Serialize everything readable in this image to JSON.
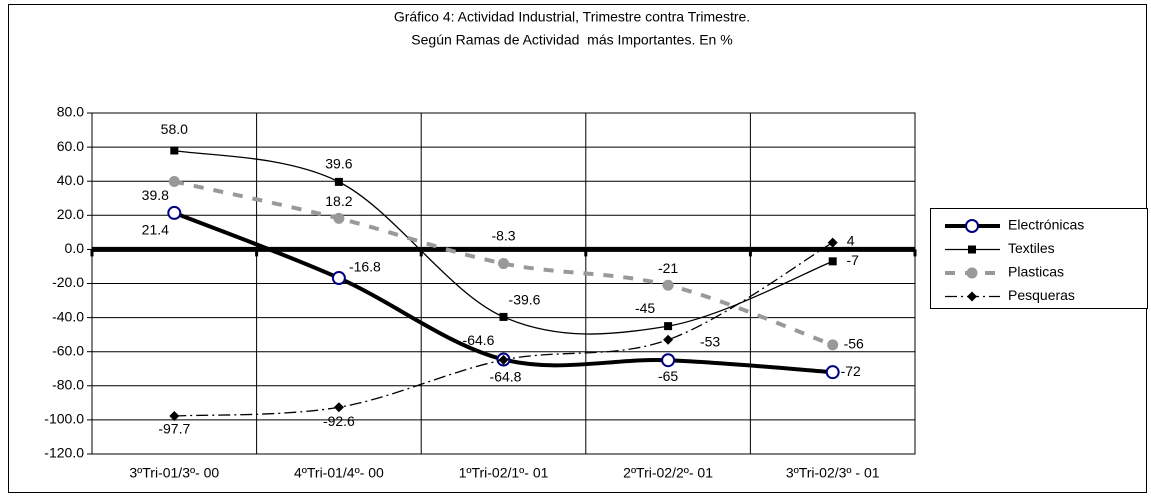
{
  "chart_data": {
    "type": "line",
    "title": [
      "Gráfico 4: Actividad Industrial, Trimestre contra Trimestre.",
      "Según Ramas de Actividad  más Importantes. En %"
    ],
    "categories": [
      "3ºTri-01/3º- 00",
      "4ºTri-01/4º- 00",
      "1ºTri-02/1º- 01",
      "2ºTri-02/2º- 01",
      "3ºTri-02/3º - 01"
    ],
    "series": [
      {
        "name": "Electrónicas",
        "color": "#000000",
        "marker_color": "#000080",
        "values": [
          21.4,
          -16.8,
          -64.6,
          -65,
          -72
        ]
      },
      {
        "name": "Textiles",
        "color": "#000000",
        "values": [
          58.0,
          39.6,
          -39.6,
          -45,
          -7
        ],
        "value_labels": [
          "58.0",
          "39.6",
          "-39.6",
          "-45",
          "-7"
        ]
      },
      {
        "name": "Plasticas",
        "color": "#999999",
        "values": [
          39.8,
          18.2,
          -8.3,
          -21,
          -56
        ]
      },
      {
        "name": "Pesqueras",
        "color": "#000000",
        "values": [
          -97.7,
          -92.6,
          -64.8,
          -53,
          4
        ]
      }
    ],
    "ylim": [
      -120,
      80
    ],
    "yticks": [
      {
        "value": -120,
        "label": "-120.0"
      },
      {
        "value": -100,
        "label": "-100.0"
      },
      {
        "value": -80,
        "label": "-80.0"
      },
      {
        "value": -60,
        "label": "-60.0"
      },
      {
        "value": -40,
        "label": "-40.0"
      },
      {
        "value": -20,
        "label": "-20.0"
      },
      {
        "value": 0,
        "label": "0.0"
      },
      {
        "value": 20,
        "label": "20.0"
      },
      {
        "value": 40,
        "label": "40.0"
      },
      {
        "value": 60,
        "label": "60.0"
      },
      {
        "value": 80,
        "label": "80.0"
      }
    ],
    "grid": true,
    "legend": "right"
  }
}
